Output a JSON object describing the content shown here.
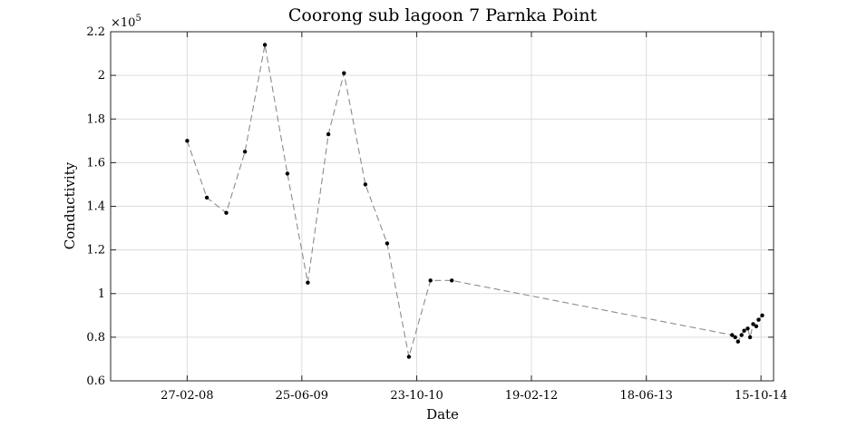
{
  "chart_data": {
    "type": "line",
    "title": "Coorong sub lagoon 7 Parnka Point",
    "xlabel": "Date",
    "ylabel": "Conductivity",
    "y_exponent_label": "×10",
    "y_exponent_power": "5",
    "y_scale": 100000,
    "ylim": [
      0.6,
      2.2
    ],
    "xlim": [
      "2007-04-10",
      "2014-12-07"
    ],
    "grid": true,
    "y_ticks": [
      {
        "value": 0.6,
        "label": "0.6"
      },
      {
        "value": 0.8,
        "label": "0.8"
      },
      {
        "value": 1.0,
        "label": "1"
      },
      {
        "value": 1.2,
        "label": "1.2"
      },
      {
        "value": 1.4,
        "label": "1.4"
      },
      {
        "value": 1.6,
        "label": "1.6"
      },
      {
        "value": 1.8,
        "label": "1.8"
      },
      {
        "value": 2.0,
        "label": "2"
      },
      {
        "value": 2.2,
        "label": "2.2"
      }
    ],
    "x_ticks": [
      {
        "date": "2008-02-27",
        "label": "27-02-08"
      },
      {
        "date": "2009-06-25",
        "label": "25-06-09"
      },
      {
        "date": "2010-10-23",
        "label": "23-10-10"
      },
      {
        "date": "2012-02-19",
        "label": "19-02-12"
      },
      {
        "date": "2013-06-18",
        "label": "18-06-13"
      },
      {
        "date": "2014-10-15",
        "label": "15-10-14"
      }
    ],
    "series": [
      {
        "line_style": "dashed",
        "line_color": "#8c8c8c",
        "marker_color": "#000000",
        "points": [
          {
            "x": "2008-02-27",
            "y": 170000
          },
          {
            "x": "2008-05-20",
            "y": 144000
          },
          {
            "x": "2008-08-10",
            "y": 137000
          },
          {
            "x": "2008-10-28",
            "y": 165000
          },
          {
            "x": "2009-01-20",
            "y": 214000
          },
          {
            "x": "2009-04-25",
            "y": 155000
          },
          {
            "x": "2009-07-20",
            "y": 105000
          },
          {
            "x": "2009-10-15",
            "y": 173000
          },
          {
            "x": "2009-12-20",
            "y": 201000
          },
          {
            "x": "2010-03-20",
            "y": 150000
          },
          {
            "x": "2010-06-20",
            "y": 123000
          },
          {
            "x": "2010-09-20",
            "y": 71000
          },
          {
            "x": "2010-12-20",
            "y": 106000
          },
          {
            "x": "2011-03-20",
            "y": 106000
          },
          {
            "x": "2014-06-15",
            "y": 81000
          },
          {
            "x": "2014-06-28",
            "y": 80000
          },
          {
            "x": "2014-07-10",
            "y": 78000
          },
          {
            "x": "2014-07-25",
            "y": 81000
          },
          {
            "x": "2014-08-05",
            "y": 83000
          },
          {
            "x": "2014-08-20",
            "y": 84000
          },
          {
            "x": "2014-08-30",
            "y": 80000
          },
          {
            "x": "2014-09-12",
            "y": 86000
          },
          {
            "x": "2014-09-25",
            "y": 85000
          },
          {
            "x": "2014-10-05",
            "y": 88000
          },
          {
            "x": "2014-10-20",
            "y": 90000
          }
        ]
      }
    ]
  }
}
